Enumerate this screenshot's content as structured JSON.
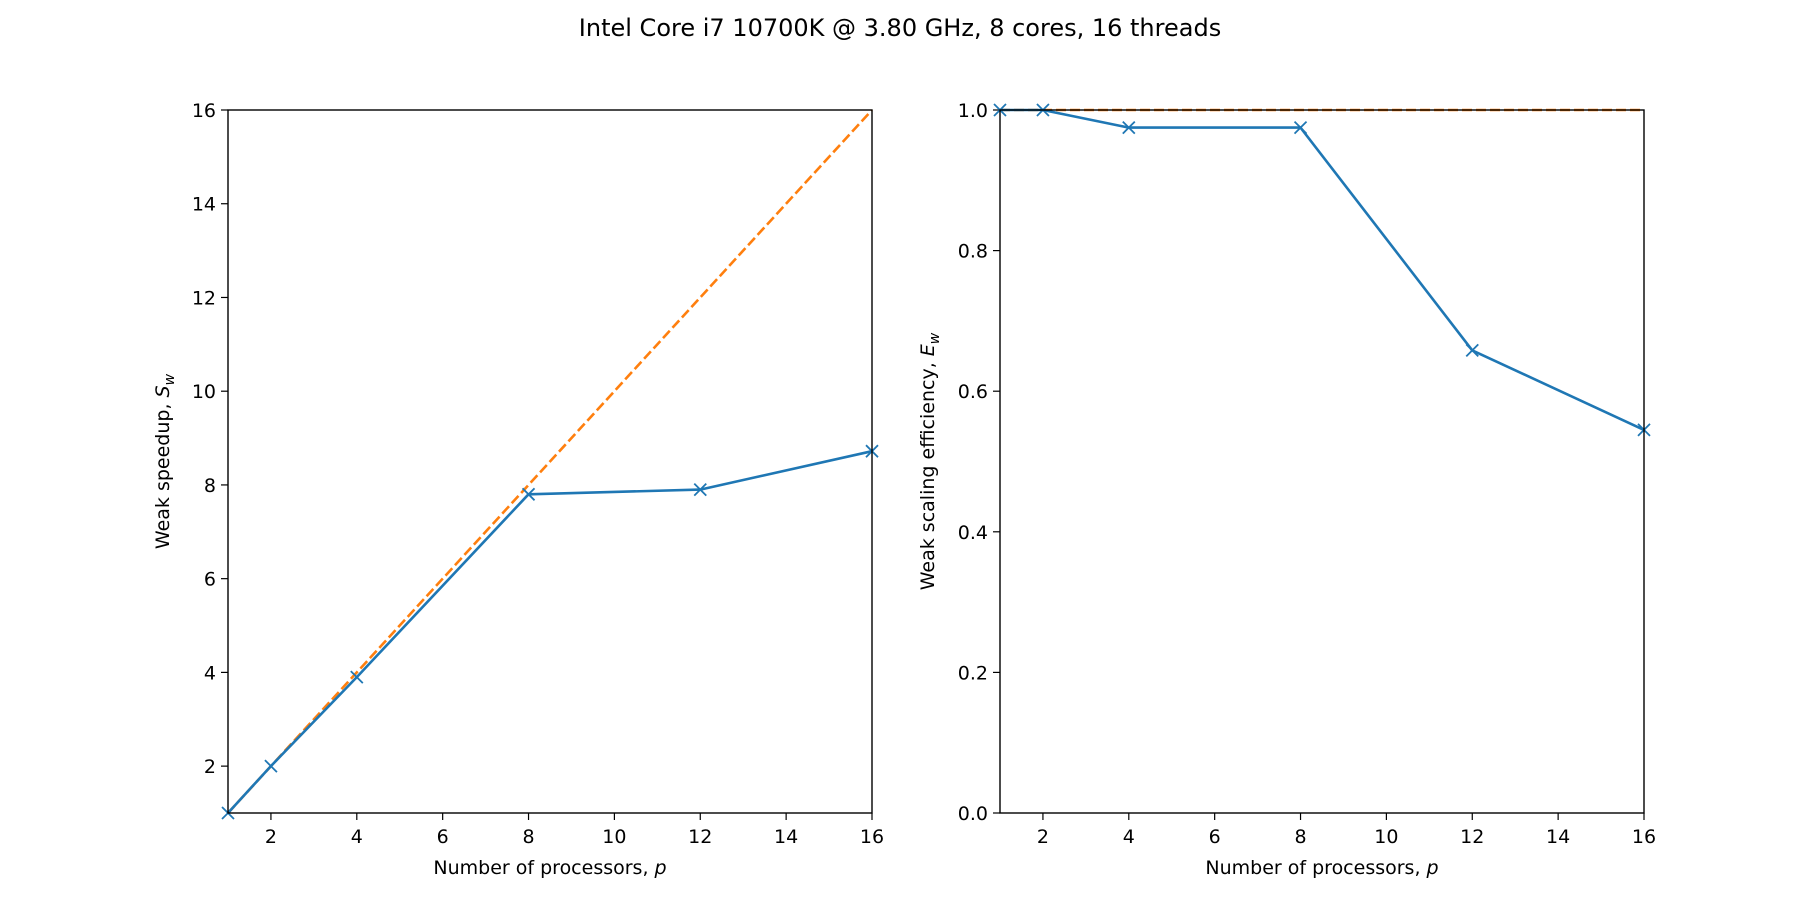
{
  "figure": {
    "suptitle": "Intel Core i7 10700K @ 3.80 GHz, 8 cores, 16 threads"
  },
  "colors": {
    "measured": "#1f77b4",
    "ideal": "#ff7f0e",
    "axes": "#000000"
  },
  "chart_data": [
    {
      "type": "line",
      "title": "",
      "xlabel": "Number of processors, ",
      "xlabel_italic": "p",
      "ylabel": "Weak speedup, ",
      "ylabel_italic": "S",
      "ylabel_sub": "w",
      "xlim": [
        1,
        16
      ],
      "ylim": [
        1,
        16
      ],
      "xticks": [
        2,
        4,
        6,
        8,
        10,
        12,
        14,
        16
      ],
      "yticks": [
        2,
        4,
        6,
        8,
        10,
        12,
        14,
        16
      ],
      "series": [
        {
          "name": "measured",
          "style": "solid",
          "marker": "x",
          "x": [
            1,
            2,
            4,
            8,
            12,
            16
          ],
          "y": [
            1.0,
            2.0,
            3.9,
            7.8,
            7.9,
            8.72
          ]
        },
        {
          "name": "ideal",
          "style": "dashed",
          "marker": "none",
          "x": [
            1,
            16
          ],
          "y": [
            1,
            16
          ]
        }
      ]
    },
    {
      "type": "line",
      "title": "",
      "xlabel": "Number of processors, ",
      "xlabel_italic": "p",
      "ylabel": "Weak scaling efficiency, ",
      "ylabel_italic": "E",
      "ylabel_sub": "w",
      "xlim": [
        1,
        16
      ],
      "ylim": [
        0,
        1.0
      ],
      "xticks": [
        2,
        4,
        6,
        8,
        10,
        12,
        14,
        16
      ],
      "yticks": [
        0.0,
        0.2,
        0.4,
        0.6,
        0.8,
        1.0
      ],
      "ytick_labels": [
        "0.0",
        "0.2",
        "0.4",
        "0.6",
        "0.8",
        "1.0"
      ],
      "series": [
        {
          "name": "measured",
          "style": "solid",
          "marker": "x",
          "x": [
            1,
            2,
            4,
            8,
            12,
            16
          ],
          "y": [
            1.0,
            1.0,
            0.975,
            0.975,
            0.658,
            0.545
          ]
        },
        {
          "name": "ideal",
          "style": "dashed",
          "marker": "none",
          "x": [
            1,
            16
          ],
          "y": [
            1.0,
            1.0
          ]
        }
      ]
    }
  ]
}
